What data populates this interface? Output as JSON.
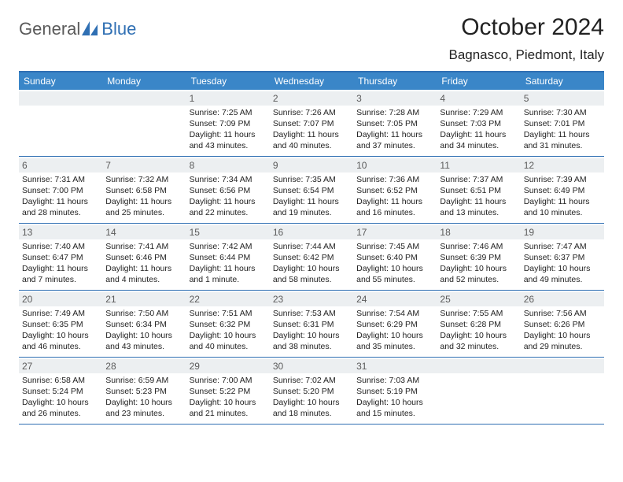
{
  "logo": {
    "text1": "General",
    "text2": "Blue"
  },
  "title": "October 2024",
  "location": "Bagnasco, Piedmont, Italy",
  "colors": {
    "header_bar": "#3a86c8",
    "rule": "#2f6fb3",
    "daynum_bg": "#eceff1",
    "text": "#222222",
    "logo_gray": "#5a5a5a",
    "logo_blue": "#2f6fb3"
  },
  "dow": [
    "Sunday",
    "Monday",
    "Tuesday",
    "Wednesday",
    "Thursday",
    "Friday",
    "Saturday"
  ],
  "weeks": [
    [
      null,
      null,
      {
        "n": "1",
        "sr": "Sunrise: 7:25 AM",
        "ss": "Sunset: 7:09 PM",
        "d1": "Daylight: 11 hours",
        "d2": "and 43 minutes."
      },
      {
        "n": "2",
        "sr": "Sunrise: 7:26 AM",
        "ss": "Sunset: 7:07 PM",
        "d1": "Daylight: 11 hours",
        "d2": "and 40 minutes."
      },
      {
        "n": "3",
        "sr": "Sunrise: 7:28 AM",
        "ss": "Sunset: 7:05 PM",
        "d1": "Daylight: 11 hours",
        "d2": "and 37 minutes."
      },
      {
        "n": "4",
        "sr": "Sunrise: 7:29 AM",
        "ss": "Sunset: 7:03 PM",
        "d1": "Daylight: 11 hours",
        "d2": "and 34 minutes."
      },
      {
        "n": "5",
        "sr": "Sunrise: 7:30 AM",
        "ss": "Sunset: 7:01 PM",
        "d1": "Daylight: 11 hours",
        "d2": "and 31 minutes."
      }
    ],
    [
      {
        "n": "6",
        "sr": "Sunrise: 7:31 AM",
        "ss": "Sunset: 7:00 PM",
        "d1": "Daylight: 11 hours",
        "d2": "and 28 minutes."
      },
      {
        "n": "7",
        "sr": "Sunrise: 7:32 AM",
        "ss": "Sunset: 6:58 PM",
        "d1": "Daylight: 11 hours",
        "d2": "and 25 minutes."
      },
      {
        "n": "8",
        "sr": "Sunrise: 7:34 AM",
        "ss": "Sunset: 6:56 PM",
        "d1": "Daylight: 11 hours",
        "d2": "and 22 minutes."
      },
      {
        "n": "9",
        "sr": "Sunrise: 7:35 AM",
        "ss": "Sunset: 6:54 PM",
        "d1": "Daylight: 11 hours",
        "d2": "and 19 minutes."
      },
      {
        "n": "10",
        "sr": "Sunrise: 7:36 AM",
        "ss": "Sunset: 6:52 PM",
        "d1": "Daylight: 11 hours",
        "d2": "and 16 minutes."
      },
      {
        "n": "11",
        "sr": "Sunrise: 7:37 AM",
        "ss": "Sunset: 6:51 PM",
        "d1": "Daylight: 11 hours",
        "d2": "and 13 minutes."
      },
      {
        "n": "12",
        "sr": "Sunrise: 7:39 AM",
        "ss": "Sunset: 6:49 PM",
        "d1": "Daylight: 11 hours",
        "d2": "and 10 minutes."
      }
    ],
    [
      {
        "n": "13",
        "sr": "Sunrise: 7:40 AM",
        "ss": "Sunset: 6:47 PM",
        "d1": "Daylight: 11 hours",
        "d2": "and 7 minutes."
      },
      {
        "n": "14",
        "sr": "Sunrise: 7:41 AM",
        "ss": "Sunset: 6:46 PM",
        "d1": "Daylight: 11 hours",
        "d2": "and 4 minutes."
      },
      {
        "n": "15",
        "sr": "Sunrise: 7:42 AM",
        "ss": "Sunset: 6:44 PM",
        "d1": "Daylight: 11 hours",
        "d2": "and 1 minute."
      },
      {
        "n": "16",
        "sr": "Sunrise: 7:44 AM",
        "ss": "Sunset: 6:42 PM",
        "d1": "Daylight: 10 hours",
        "d2": "and 58 minutes."
      },
      {
        "n": "17",
        "sr": "Sunrise: 7:45 AM",
        "ss": "Sunset: 6:40 PM",
        "d1": "Daylight: 10 hours",
        "d2": "and 55 minutes."
      },
      {
        "n": "18",
        "sr": "Sunrise: 7:46 AM",
        "ss": "Sunset: 6:39 PM",
        "d1": "Daylight: 10 hours",
        "d2": "and 52 minutes."
      },
      {
        "n": "19",
        "sr": "Sunrise: 7:47 AM",
        "ss": "Sunset: 6:37 PM",
        "d1": "Daylight: 10 hours",
        "d2": "and 49 minutes."
      }
    ],
    [
      {
        "n": "20",
        "sr": "Sunrise: 7:49 AM",
        "ss": "Sunset: 6:35 PM",
        "d1": "Daylight: 10 hours",
        "d2": "and 46 minutes."
      },
      {
        "n": "21",
        "sr": "Sunrise: 7:50 AM",
        "ss": "Sunset: 6:34 PM",
        "d1": "Daylight: 10 hours",
        "d2": "and 43 minutes."
      },
      {
        "n": "22",
        "sr": "Sunrise: 7:51 AM",
        "ss": "Sunset: 6:32 PM",
        "d1": "Daylight: 10 hours",
        "d2": "and 40 minutes."
      },
      {
        "n": "23",
        "sr": "Sunrise: 7:53 AM",
        "ss": "Sunset: 6:31 PM",
        "d1": "Daylight: 10 hours",
        "d2": "and 38 minutes."
      },
      {
        "n": "24",
        "sr": "Sunrise: 7:54 AM",
        "ss": "Sunset: 6:29 PM",
        "d1": "Daylight: 10 hours",
        "d2": "and 35 minutes."
      },
      {
        "n": "25",
        "sr": "Sunrise: 7:55 AM",
        "ss": "Sunset: 6:28 PM",
        "d1": "Daylight: 10 hours",
        "d2": "and 32 minutes."
      },
      {
        "n": "26",
        "sr": "Sunrise: 7:56 AM",
        "ss": "Sunset: 6:26 PM",
        "d1": "Daylight: 10 hours",
        "d2": "and 29 minutes."
      }
    ],
    [
      {
        "n": "27",
        "sr": "Sunrise: 6:58 AM",
        "ss": "Sunset: 5:24 PM",
        "d1": "Daylight: 10 hours",
        "d2": "and 26 minutes."
      },
      {
        "n": "28",
        "sr": "Sunrise: 6:59 AM",
        "ss": "Sunset: 5:23 PM",
        "d1": "Daylight: 10 hours",
        "d2": "and 23 minutes."
      },
      {
        "n": "29",
        "sr": "Sunrise: 7:00 AM",
        "ss": "Sunset: 5:22 PM",
        "d1": "Daylight: 10 hours",
        "d2": "and 21 minutes."
      },
      {
        "n": "30",
        "sr": "Sunrise: 7:02 AM",
        "ss": "Sunset: 5:20 PM",
        "d1": "Daylight: 10 hours",
        "d2": "and 18 minutes."
      },
      {
        "n": "31",
        "sr": "Sunrise: 7:03 AM",
        "ss": "Sunset: 5:19 PM",
        "d1": "Daylight: 10 hours",
        "d2": "and 15 minutes."
      },
      null,
      null
    ]
  ]
}
